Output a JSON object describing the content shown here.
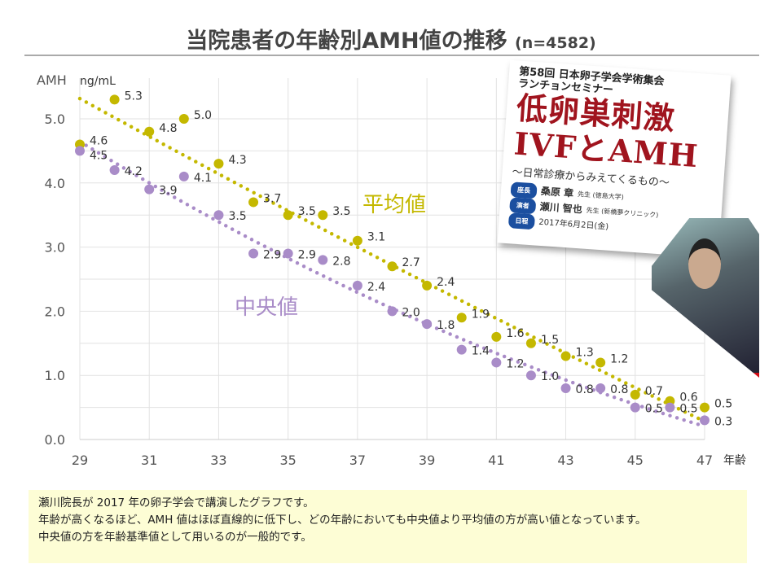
{
  "title": {
    "main": "当院患者の年齢別AMH値の推移",
    "n": "(n=4582)"
  },
  "card": {
    "line1": "第58回 日本卵子学会学術集会",
    "line2": "ランチョンセミナー",
    "heading1": "低卵巣刺激",
    "heading2": "IVFとAMH",
    "subtitle": "〜日常診療からみえてくるもの〜",
    "rows": [
      {
        "tag": "座長",
        "name": "桑原 章",
        "suffix": "先生 (徳島大学)"
      },
      {
        "tag": "演者",
        "name": "瀬川 智也",
        "suffix": "先生 (新橋夢クリニック)"
      },
      {
        "tag": "日程",
        "name": "2017年6月2日(金)",
        "suffix": ""
      }
    ]
  },
  "note": [
    "瀬川院長が 2017 年の卵子学会で講演したグラフです。",
    "年齢が高くなるほど、AMH 値はほぼ直線的に低下し、どの年齢においても中央値より平均値の方が高い値となっています。",
    "中央値の方を年齢基準値として用いるのが一般的です。"
  ],
  "chart_data": {
    "type": "scatter",
    "ylabel": "AMH",
    "yunit": "ng/mL",
    "xlabel": "年齢",
    "xlim": [
      29,
      47
    ],
    "ylim": [
      0,
      5.0
    ],
    "xticks": [
      "29",
      "31",
      "33",
      "35",
      "37",
      "39",
      "41",
      "43",
      "45",
      "47"
    ],
    "yticks": [
      "0.0",
      "1.0",
      "2.0",
      "3.0",
      "4.0",
      "5.0"
    ],
    "x": [
      29,
      30,
      31,
      32,
      33,
      34,
      35,
      36,
      37,
      38,
      39,
      40,
      41,
      42,
      43,
      44,
      45,
      46,
      47
    ],
    "series": [
      {
        "name": "平均値",
        "color": "#c4b800",
        "trend_color": "#c4b800",
        "values": [
          4.6,
          5.3,
          4.8,
          5.0,
          4.3,
          3.7,
          3.5,
          3.5,
          3.1,
          2.7,
          2.4,
          1.9,
          1.6,
          1.5,
          1.3,
          1.2,
          0.7,
          0.6,
          0.5
        ]
      },
      {
        "name": "中央値",
        "color": "#a98cc8",
        "trend_color": "#a98cc8",
        "values": [
          4.5,
          4.2,
          3.9,
          4.1,
          3.5,
          2.9,
          2.9,
          2.8,
          2.4,
          2.0,
          1.8,
          1.4,
          1.2,
          1.0,
          0.8,
          0.8,
          0.5,
          0.5,
          0.3
        ]
      }
    ],
    "grid": true
  }
}
